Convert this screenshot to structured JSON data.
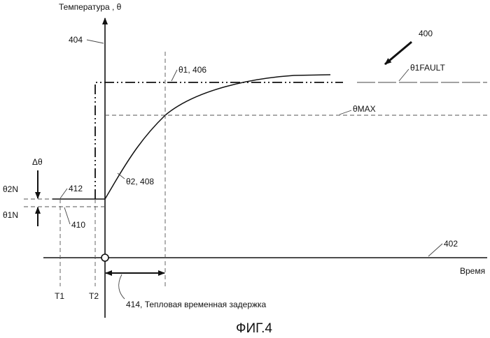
{
  "figure": {
    "y_axis_label": "Температура ,  θ",
    "x_axis_label": "Время",
    "caption": "ФИГ.4",
    "ref_400": "400",
    "ref_402": "402",
    "ref_404": "404",
    "theta1_label": "θ1, 406",
    "theta2_label": "θ2, 408",
    "theta1_fault_label": "θ1FAULT",
    "theta_max_label": "θMAX",
    "delta_theta_label": "Δθ",
    "theta2n_label": "θ2N",
    "theta1n_label": "θ1N",
    "ref_412": "412",
    "ref_410": "410",
    "t1_label": "T1",
    "t2_label": "T2",
    "delay_label": "414, Тепловая временная задержка"
  }
}
